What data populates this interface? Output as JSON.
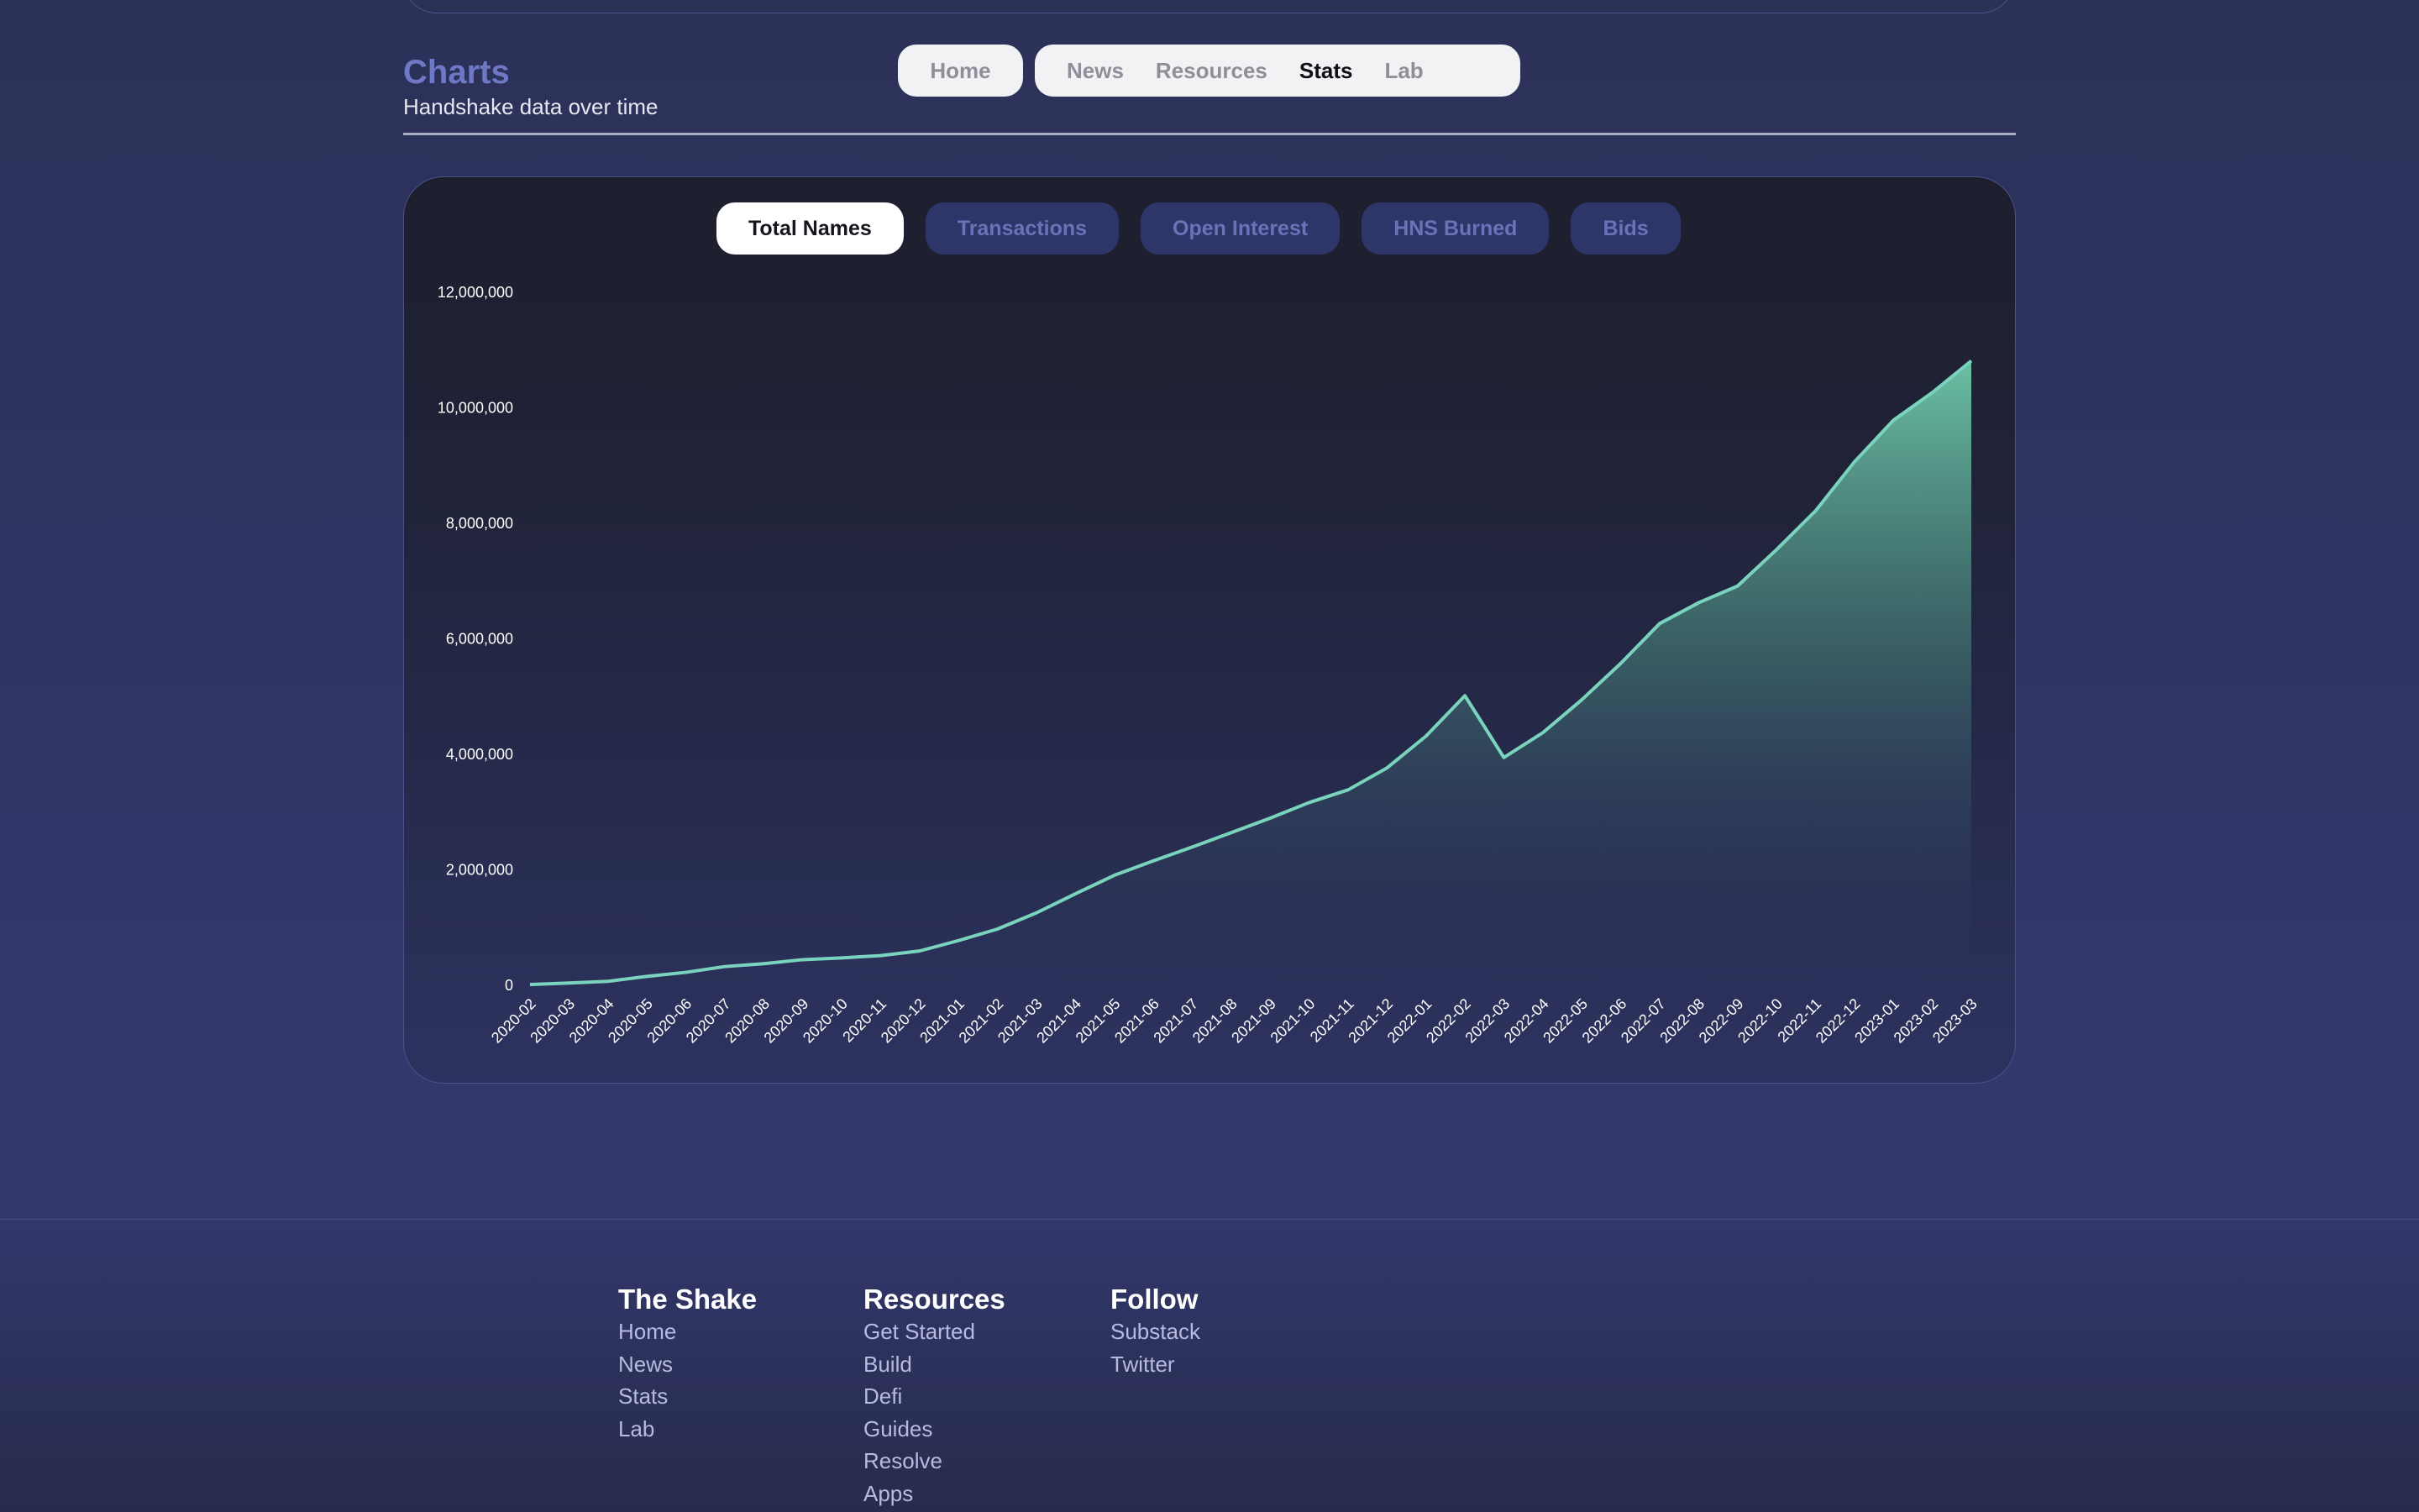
{
  "header": {
    "title": "Charts",
    "subtitle": "Handshake data over time"
  },
  "nav": {
    "home": "Home",
    "links": [
      {
        "label": "News",
        "active": false
      },
      {
        "label": "Resources",
        "active": false
      },
      {
        "label": "Stats",
        "active": true
      },
      {
        "label": "Lab",
        "active": false
      }
    ]
  },
  "tabs": [
    {
      "label": "Total Names",
      "active": true
    },
    {
      "label": "Transactions",
      "active": false
    },
    {
      "label": "Open Interest",
      "active": false
    },
    {
      "label": "HNS Burned",
      "active": false
    },
    {
      "label": "Bids",
      "active": false
    }
  ],
  "colors": {
    "line": "#7ad3bc",
    "area_top": "#6fc8aa",
    "accent_title": "#6f78c4"
  },
  "chart_data": {
    "type": "area",
    "ylim": [
      0,
      12000000
    ],
    "yticks": [
      0,
      2000000,
      4000000,
      6000000,
      8000000,
      10000000,
      12000000
    ],
    "ytick_labels": [
      "0",
      "2,000,000",
      "4,000,000",
      "6,000,000",
      "8,000,000",
      "10,000,000",
      "12,000,000"
    ],
    "x": [
      "2020-02",
      "2020-03",
      "2020-04",
      "2020-05",
      "2020-06",
      "2020-07",
      "2020-08",
      "2020-09",
      "2020-10",
      "2020-11",
      "2020-12",
      "2021-01",
      "2021-02",
      "2021-03",
      "2021-04",
      "2021-05",
      "2021-06",
      "2021-07",
      "2021-08",
      "2021-09",
      "2021-10",
      "2021-11",
      "2021-12",
      "2022-01",
      "2022-02",
      "2022-03",
      "2022-04",
      "2022-05",
      "2022-06",
      "2022-07",
      "2022-08",
      "2022-09",
      "2022-10",
      "2022-11",
      "2022-12",
      "2023-01",
      "2023-02",
      "2023-03"
    ],
    "series": [
      {
        "values": [
          0,
          25000,
          55000,
          140000,
          210000,
          310000,
          360000,
          430000,
          460000,
          500000,
          580000,
          760000,
          960000,
          1240000,
          1570000,
          1890000,
          2140000,
          2380000,
          2630000,
          2880000,
          3150000,
          3370000,
          3750000,
          4300000,
          5000000,
          3930000,
          4360000,
          4930000,
          5560000,
          6250000,
          6610000,
          6900000,
          7530000,
          8200000,
          9050000,
          9770000,
          10250000,
          10800000
        ]
      }
    ],
    "grid": false,
    "legend": "none"
  },
  "footer": {
    "columns": [
      {
        "title": "The Shake",
        "links": [
          "Home",
          "News",
          "Stats",
          "Lab"
        ]
      },
      {
        "title": "Resources",
        "links": [
          "Get Started",
          "Build",
          "Defi",
          "Guides",
          "Resolve",
          "Apps"
        ]
      },
      {
        "title": "Follow",
        "links": [
          "Substack",
          "Twitter"
        ]
      }
    ]
  }
}
